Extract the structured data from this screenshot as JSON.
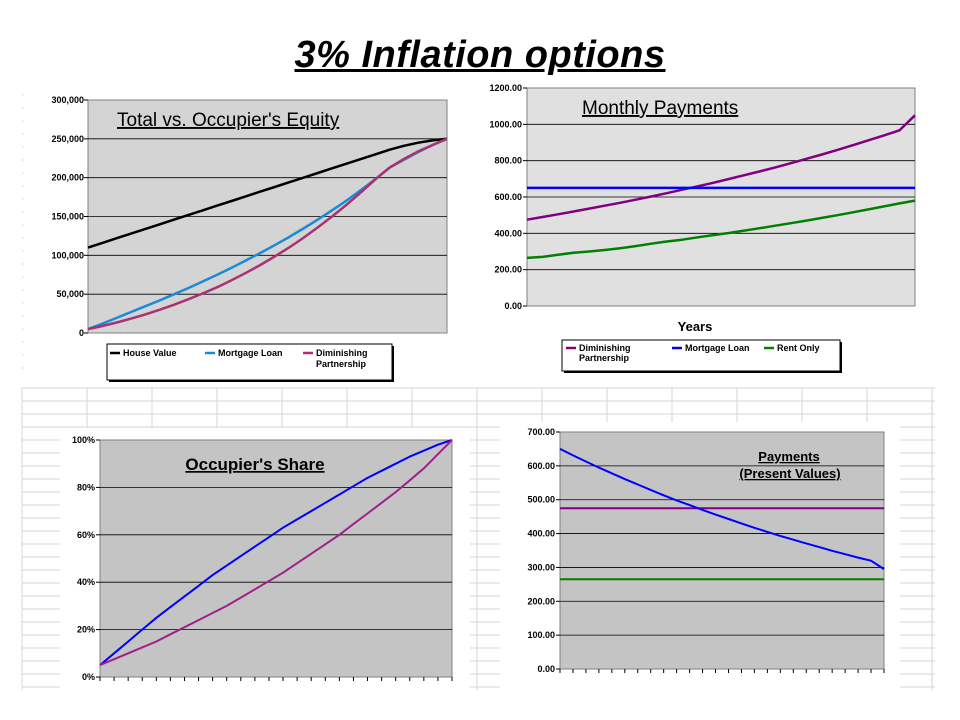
{
  "slide": {
    "title": "3% Inflation options"
  },
  "chart_data": [
    {
      "type": "line",
      "title": "Total vs. Occupier's Equity",
      "x": [
        0,
        1,
        2,
        3,
        4,
        5,
        6,
        7,
        8,
        9,
        10,
        11,
        12,
        13,
        14,
        15,
        16,
        17,
        18,
        19,
        20,
        21,
        22,
        23,
        24,
        25
      ],
      "ylim": [
        0,
        300000
      ],
      "ytick_labels": [
        "0",
        "50,000",
        "100,000",
        "150,000",
        "200,000",
        "250,000",
        "300,000"
      ],
      "grid": true,
      "legend_position": "bottom",
      "series": [
        {
          "name": "House Value",
          "color": "#000000",
          "values": [
            110000,
            116000,
            122000,
            128000,
            134000,
            140000,
            146000,
            152000,
            158000,
            164000,
            170000,
            176000,
            182000,
            188000,
            194000,
            200000,
            206000,
            212000,
            218000,
            224000,
            230000,
            236000,
            241000,
            245000,
            248000,
            250000
          ]
        },
        {
          "name": "Mortgage Loan",
          "color": "#1b8ad6",
          "values": [
            5000,
            12000,
            19500,
            27000,
            34500,
            42000,
            50000,
            58000,
            66500,
            75000,
            84000,
            93500,
            103000,
            113000,
            123500,
            134500,
            146000,
            158000,
            170500,
            184000,
            198000,
            213000,
            223000,
            233000,
            242000,
            250000
          ]
        },
        {
          "name": "Diminishing Partnership",
          "color": "#a83272",
          "values": [
            5000,
            9000,
            13500,
            18500,
            24000,
            30000,
            36500,
            43500,
            51000,
            59000,
            68000,
            77500,
            87500,
            98500,
            110000,
            122500,
            136000,
            150000,
            165000,
            181000,
            197500,
            213000,
            224000,
            234000,
            242000,
            250000
          ]
        }
      ]
    },
    {
      "type": "line",
      "title": "Monthly Payments",
      "xlabel": "Years",
      "x": [
        0,
        1,
        2,
        3,
        4,
        5,
        6,
        7,
        8,
        9,
        10,
        11,
        12,
        13,
        14,
        15,
        16,
        17,
        18,
        19,
        20,
        21,
        22,
        23,
        24,
        25
      ],
      "ylim": [
        0,
        1200
      ],
      "ytick_labels": [
        "0.00",
        "200.00",
        "400.00",
        "600.00",
        "800.00",
        "1000.00",
        "1200.00"
      ],
      "grid": true,
      "legend_position": "bottom",
      "series": [
        {
          "name": "Diminishing Partnership",
          "color": "#800080",
          "values": [
            475,
            490,
            505,
            520,
            536,
            552,
            568,
            585,
            603,
            621,
            640,
            659,
            678,
            699,
            720,
            741,
            763,
            786,
            810,
            834,
            859,
            885,
            912,
            939,
            967,
            1050
          ]
        },
        {
          "name": "Mortgage Loan",
          "color": "#0000ff",
          "values": [
            650,
            650,
            650,
            650,
            650,
            650,
            650,
            650,
            650,
            650,
            650,
            650,
            650,
            650,
            650,
            650,
            650,
            650,
            650,
            650,
            650,
            650,
            650,
            650,
            650,
            650
          ]
        },
        {
          "name": "Rent   Only",
          "color": "#008000",
          "values": [
            265,
            270,
            282,
            293,
            300,
            308,
            318,
            330,
            343,
            355,
            365,
            378,
            390,
            402,
            415,
            428,
            442,
            456,
            470,
            485,
            500,
            516,
            532,
            548,
            565,
            580
          ]
        }
      ]
    },
    {
      "type": "line",
      "title": "Occupier's Share",
      "x": [
        0,
        1,
        2,
        3,
        4,
        5,
        6,
        7,
        8,
        9,
        10,
        11,
        12,
        13,
        14,
        15,
        16,
        17,
        18,
        19,
        20,
        21,
        22,
        23,
        24,
        25
      ],
      "ylim": [
        0,
        1
      ],
      "ytick_labels": [
        "0%",
        "20%",
        "40%",
        "60%",
        "80%",
        "100%"
      ],
      "grid": true,
      "series": [
        {
          "color": "#0000ff",
          "values": [
            0.05,
            0.1,
            0.15,
            0.2,
            0.25,
            0.295,
            0.34,
            0.385,
            0.43,
            0.47,
            0.51,
            0.55,
            0.59,
            0.63,
            0.665,
            0.7,
            0.735,
            0.77,
            0.805,
            0.84,
            0.87,
            0.9,
            0.93,
            0.955,
            0.98,
            1.0
          ]
        },
        {
          "color": "#a0208a",
          "values": [
            0.05,
            0.075,
            0.1,
            0.125,
            0.15,
            0.18,
            0.21,
            0.24,
            0.27,
            0.3,
            0.335,
            0.37,
            0.405,
            0.44,
            0.48,
            0.52,
            0.56,
            0.6,
            0.645,
            0.69,
            0.735,
            0.78,
            0.83,
            0.88,
            0.94,
            1.0
          ]
        }
      ]
    },
    {
      "type": "line",
      "title": "Payments",
      "subtitle": "(Present Values)",
      "x": [
        0,
        1,
        2,
        3,
        4,
        5,
        6,
        7,
        8,
        9,
        10,
        11,
        12,
        13,
        14,
        15,
        16,
        17,
        18,
        19,
        20,
        21,
        22,
        23,
        24,
        25
      ],
      "ylim": [
        0,
        700
      ],
      "ytick_labels": [
        "0.00",
        "100.00",
        "200.00",
        "300.00",
        "400.00",
        "500.00",
        "600.00",
        "700.00"
      ],
      "grid": true,
      "series": [
        {
          "color": "#800080",
          "values": [
            475,
            475,
            475,
            475,
            475,
            475,
            475,
            475,
            475,
            475,
            475,
            475,
            475,
            475,
            475,
            475,
            475,
            475,
            475,
            475,
            475,
            475,
            475,
            475,
            475,
            475
          ]
        },
        {
          "color": "#0000ff",
          "values": [
            650,
            631,
            613,
            595,
            578,
            561,
            545,
            529,
            513,
            498,
            484,
            470,
            456,
            443,
            430,
            417,
            405,
            393,
            382,
            371,
            360,
            349,
            339,
            329,
            320,
            295
          ]
        },
        {
          "color": "#008000",
          "values": [
            265,
            265,
            265,
            265,
            265,
            265,
            265,
            265,
            265,
            265,
            265,
            265,
            265,
            265,
            265,
            265,
            265,
            265,
            265,
            265,
            265,
            265,
            265,
            265,
            265,
            265
          ]
        }
      ]
    }
  ]
}
